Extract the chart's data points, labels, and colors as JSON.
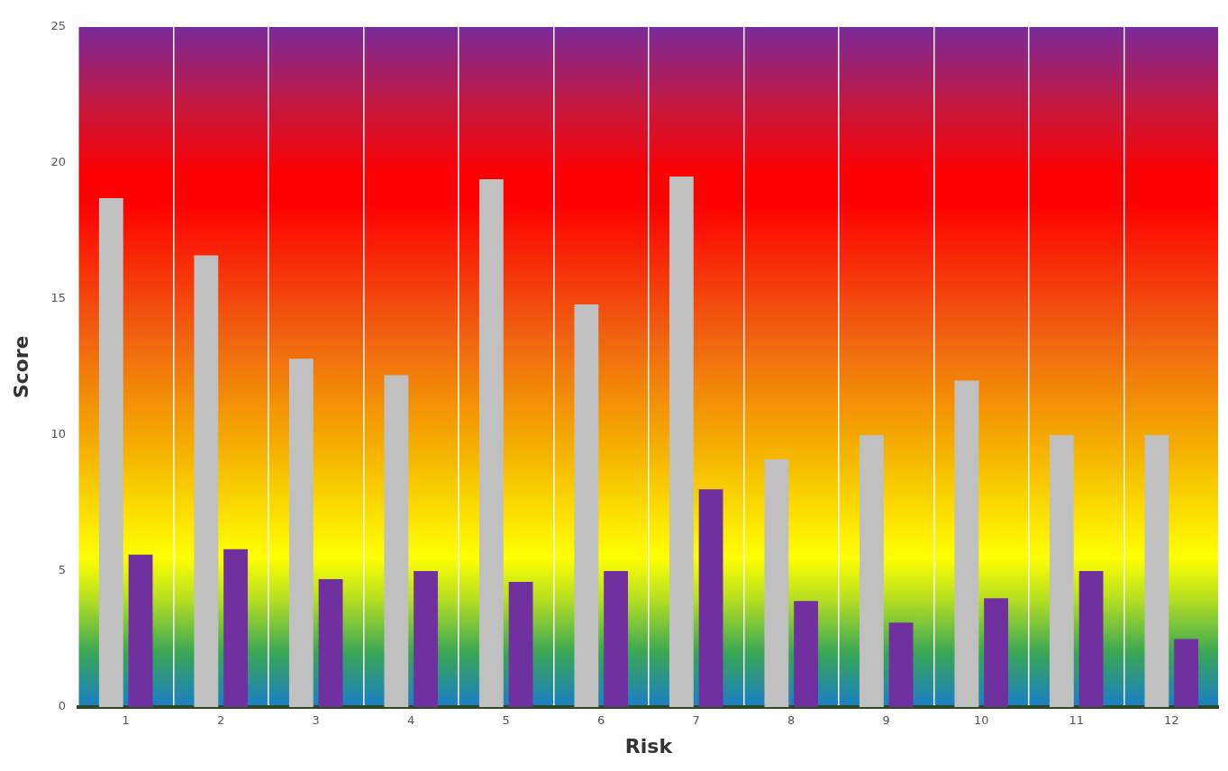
{
  "chart_data": {
    "type": "bar",
    "xlabel": "Risk",
    "ylabel": "Score",
    "categories": [
      "1",
      "2",
      "3",
      "4",
      "5",
      "6",
      "7",
      "8",
      "9",
      "10",
      "11",
      "12"
    ],
    "series": [
      {
        "color": "#c0c0c0",
        "values": [
          18.7,
          16.6,
          12.8,
          12.2,
          19.4,
          14.8,
          19.5,
          9.1,
          10,
          12,
          10,
          10
        ]
      },
      {
        "color": "#7030a0",
        "values": [
          5.6,
          5.8,
          4.7,
          5,
          4.6,
          5,
          8,
          3.9,
          3.1,
          4,
          5,
          2.5
        ]
      }
    ],
    "ylim": [
      0,
      25
    ],
    "yticks": [
      0,
      5,
      10,
      15,
      20,
      25
    ],
    "grid": "x",
    "legend": false
  }
}
